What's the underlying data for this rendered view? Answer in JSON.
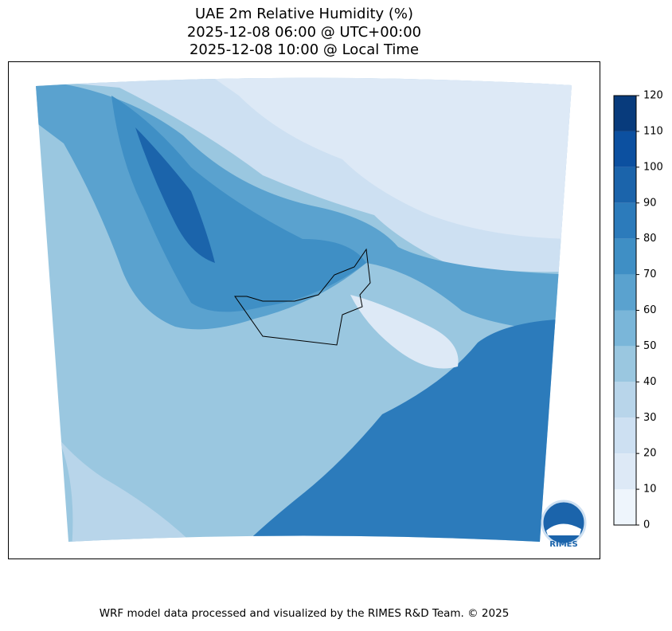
{
  "title": [
    "UAE 2m Relative Humidity (%)",
    "2025-12-08 06:00 @ UTC+00:00",
    "2025-12-08 10:00 @ Local Time"
  ],
  "colorbar": {
    "lim": [
      0,
      120
    ],
    "ticks": [
      0,
      10,
      20,
      30,
      40,
      50,
      60,
      70,
      80,
      90,
      100,
      110,
      120
    ],
    "colors": [
      "#eef5fc",
      "#dde9f6",
      "#cde0f2",
      "#b8d5ea",
      "#9ac7e0",
      "#7ab6d9",
      "#5aa2cf",
      "#3f8fc5",
      "#2c7bbb",
      "#1b64ab",
      "#0c50a0",
      "#083b7c"
    ]
  },
  "logo": {
    "text": "RIMES"
  },
  "footer": "WRF model data processed and visualized by the RIMES R&D Team. © 2025"
}
